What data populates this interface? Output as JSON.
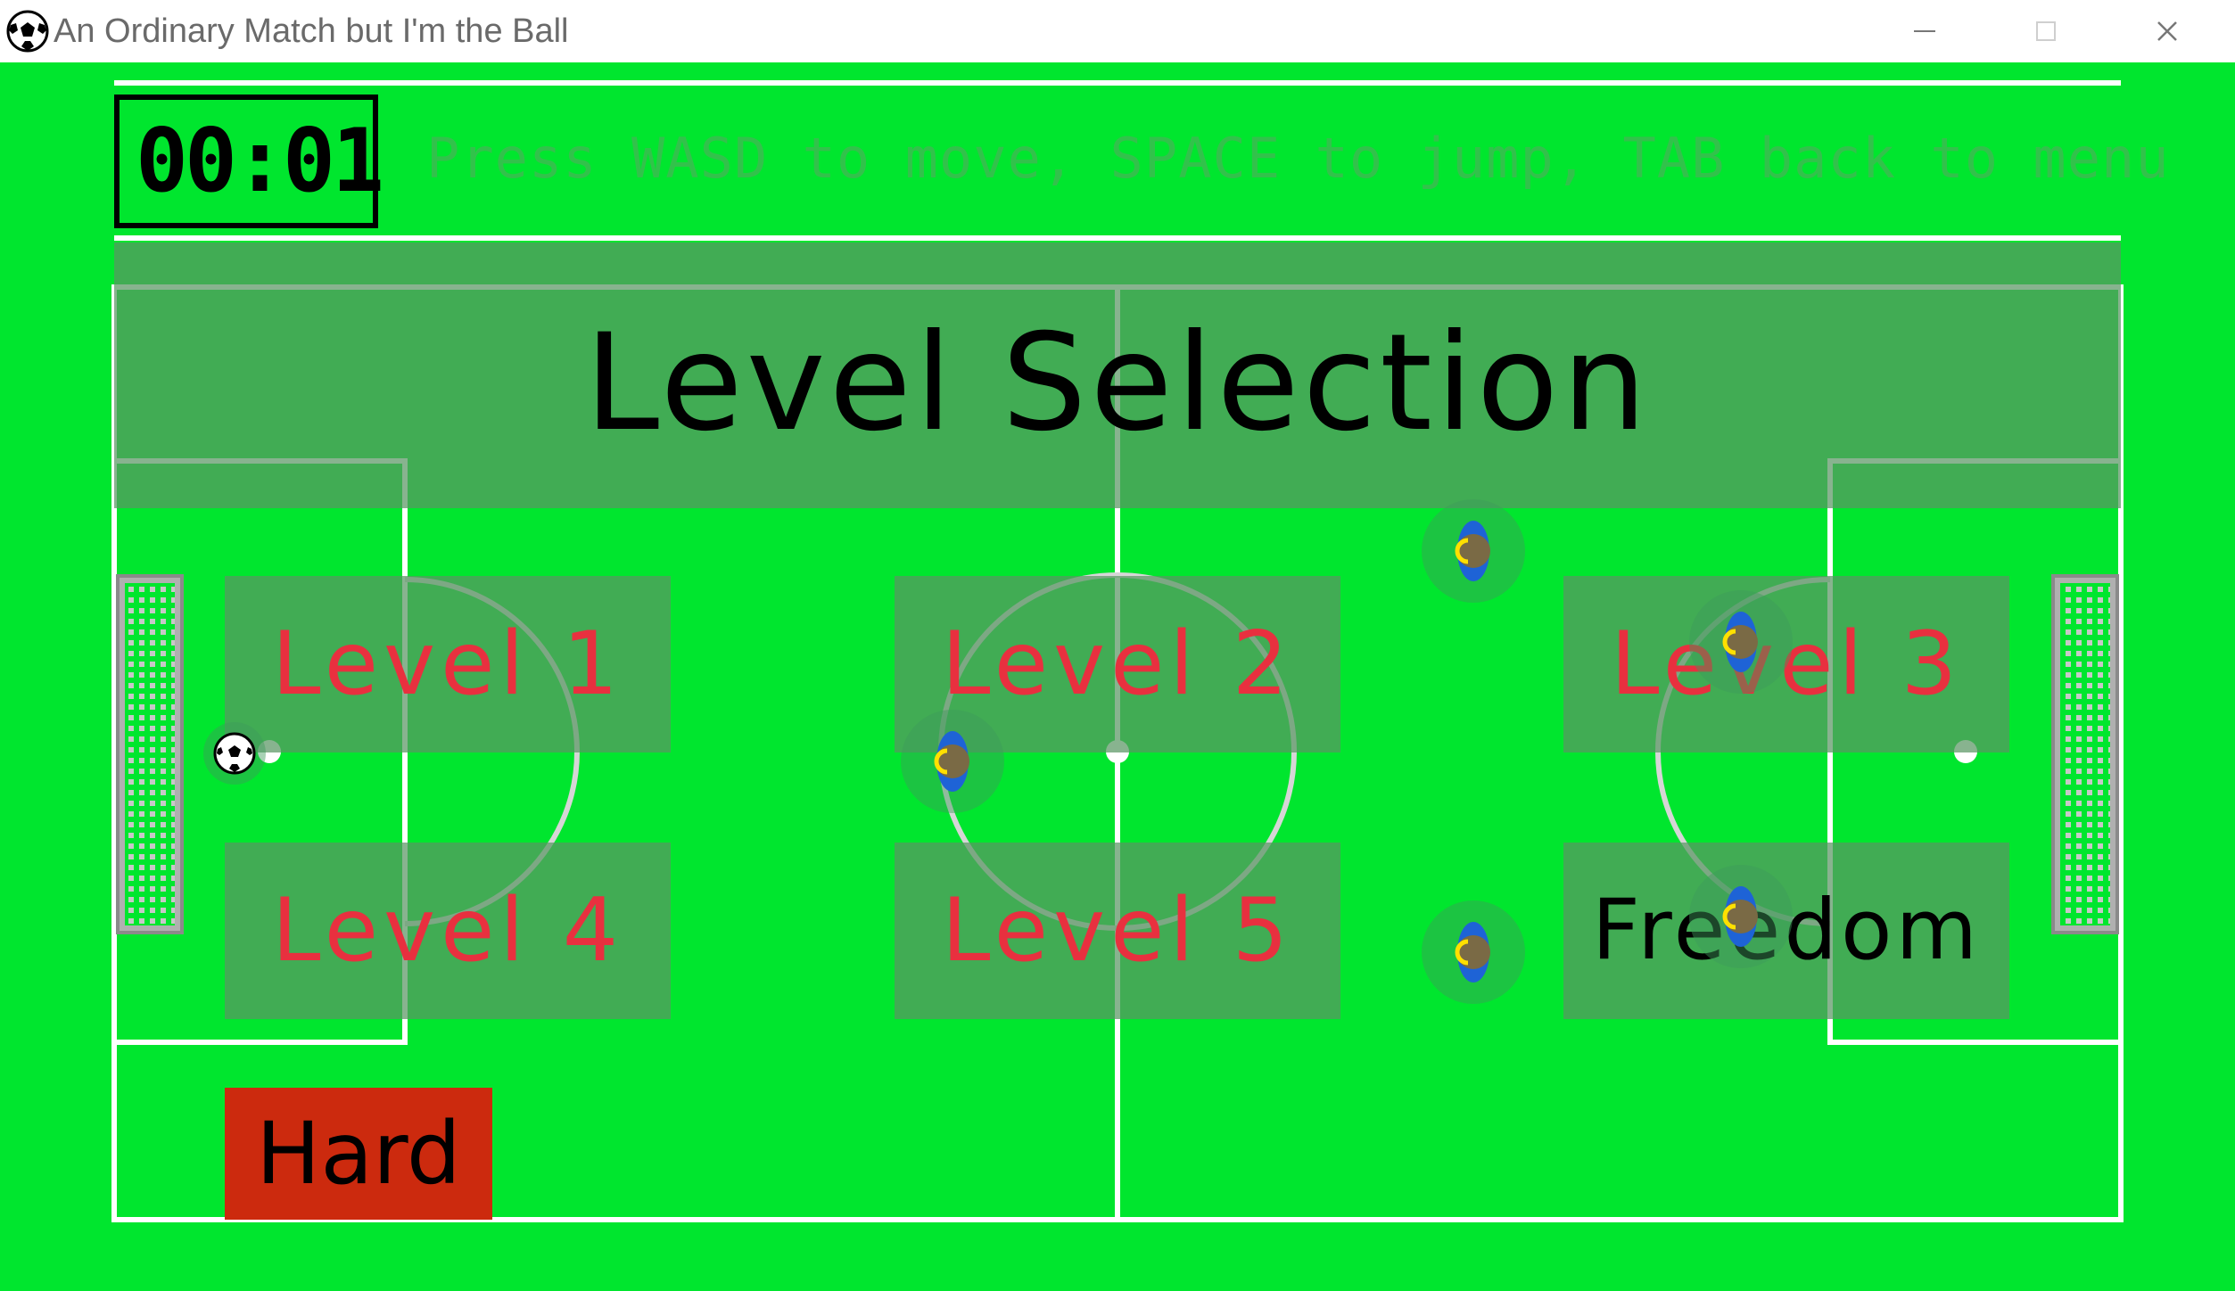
{
  "window": {
    "title": "An Ordinary Match but I'm the Ball",
    "app_icon": "soccer-ball-icon",
    "controls": [
      "minimize-icon",
      "maximize-icon",
      "close-icon"
    ]
  },
  "hud": {
    "timer": "00:01",
    "instructions": "Press WASD to move, SPACE to jump, TAB back to menu"
  },
  "menu": {
    "heading": "Level Selection",
    "levels": [
      {
        "label": "Level 1"
      },
      {
        "label": "Level 2"
      },
      {
        "label": "Level 3"
      },
      {
        "label": "Level 4"
      },
      {
        "label": "Level 5"
      },
      {
        "label": "Freedom"
      }
    ],
    "difficulty": "Hard"
  },
  "colors": {
    "pitch": "#00e62e",
    "level_text": "#e8303f",
    "difficulty_button": "#cc2a0e"
  }
}
